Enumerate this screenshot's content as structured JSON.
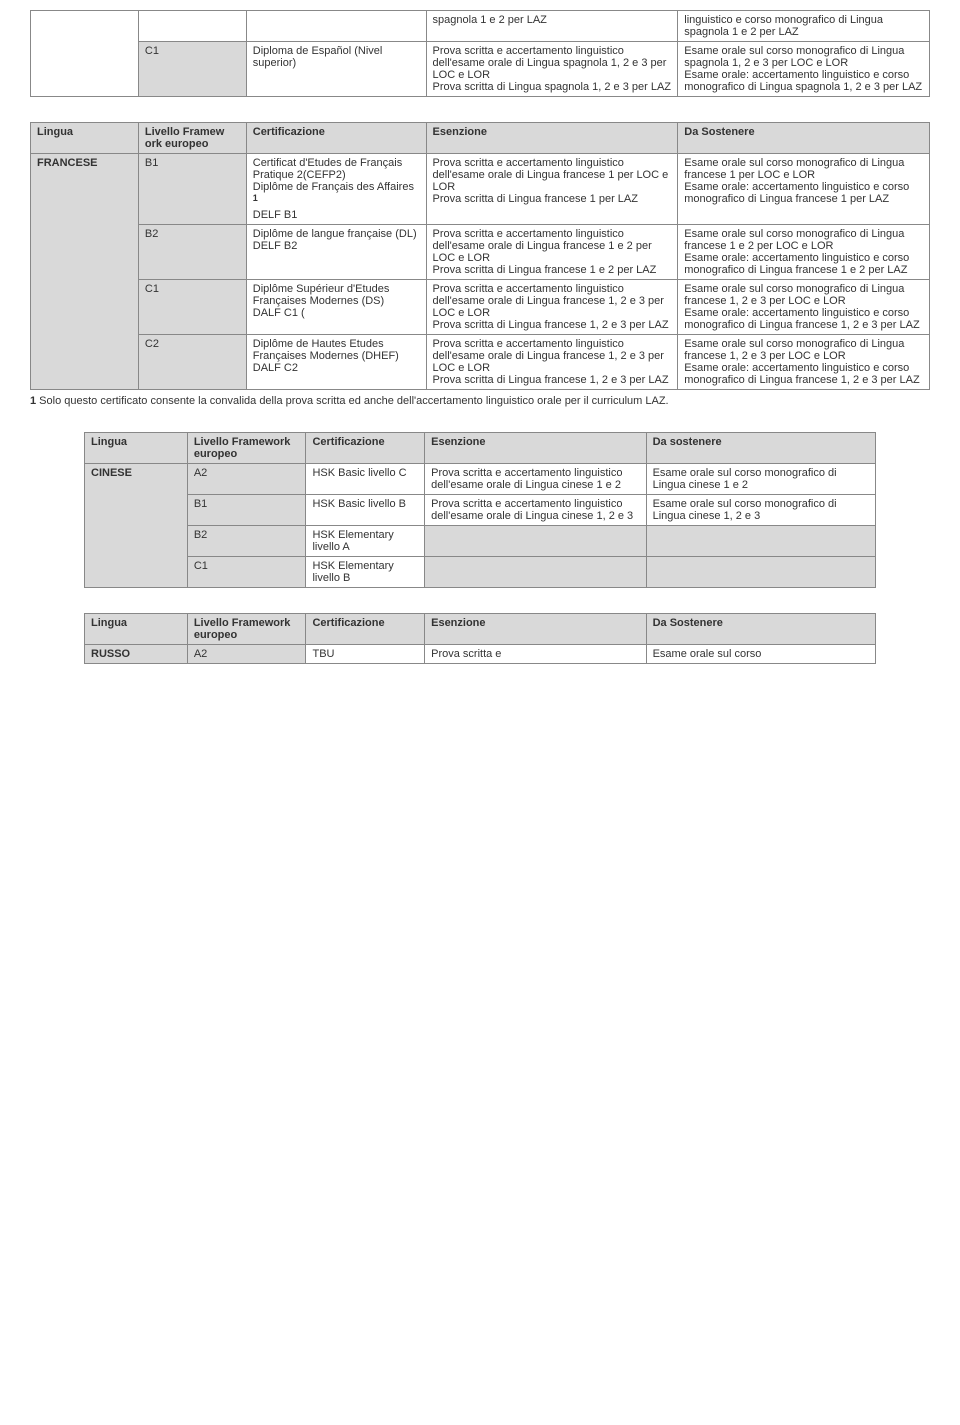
{
  "table1": {
    "r1c1": "",
    "r1c2": "",
    "r1c3": "spagnola 1 e 2 per LAZ",
    "r1c4": "linguistico e corso monografico di Lingua spagnola 1 e 2 per LAZ",
    "r2c1": "C1",
    "r2c2": "Diploma de Español (Nivel superior)",
    "r2c3": "Prova scritta e accertamento linguistico dell'esame orale di Lingua spagnola 1, 2 e 3 per LOC e LOR\nProva scritta di Lingua spagnola 1, 2 e 3 per LAZ",
    "r2c4": "Esame orale sul corso monografico di Lingua spagnola 1, 2 e 3 per LOC e LOR\nEsame orale: accertamento linguistico e corso monografico di Lingua spagnola 1, 2 e 3 per LAZ"
  },
  "table2": {
    "h1": "Lingua",
    "h2": "Livello Framew ork europeo",
    "h3": "Certificazione",
    "h4": "Esenzione",
    "h5": "Da Sostenere",
    "lang": "FRANCESE",
    "r1c1": "B1",
    "r1c2a": "Certificat d'Etudes de Français Pratique 2(CEFP2)",
    "r1c2b": "Diplôme de Français des Affaires ",
    "r1c2sup": "1",
    "r1c2c": "DELF B1",
    "r1c3": "Prova scritta e accertamento linguistico dell'esame orale di Lingua francese 1 per LOC e LOR\nProva scritta di Lingua francese 1 per LAZ",
    "r1c4": "Esame orale sul corso monografico di Lingua francese 1 per LOC e LOR\nEsame orale: accertamento linguistico e corso monografico di Lingua francese 1 per LAZ",
    "r2c1": "B2",
    "r2c2": "Diplôme de langue française (DL)\nDELF B2",
    "r2c3": "Prova scritta e accertamento linguistico dell'esame orale di Lingua francese 1 e 2 per LOC e LOR\nProva scritta di Lingua francese 1 e 2 per LAZ",
    "r2c4": "Esame orale sul corso monografico di Lingua francese 1 e 2 per LOC e LOR\nEsame orale: accertamento linguistico e corso monografico di Lingua francese 1 e 2 per LAZ",
    "r3c1": "C1",
    "r3c2": "Diplôme Supérieur d'Etudes Françaises Modernes (DS)\nDALF C1 (",
    "r3c3": "Prova scritta e accertamento linguistico dell'esame orale di Lingua francese 1, 2 e 3 per LOC e LOR\nProva scritta di Lingua francese 1, 2 e 3 per LAZ",
    "r3c4": "Esame orale sul corso monografico di Lingua francese 1, 2 e 3 per LOC e LOR\nEsame orale: accertamento linguistico e corso monografico di Lingua francese 1, 2 e 3 per LAZ",
    "r4c1": "C2",
    "r4c2": "Diplôme de Hautes Etudes Françaises Modernes (DHEF)\nDALF C2",
    "r4c3": "Prova scritta e accertamento linguistico dell'esame orale di Lingua francese 1, 2 e 3 per LOC e LOR\nProva scritta di Lingua francese 1, 2 e 3 per LAZ",
    "r4c4": "Esame orale sul corso monografico di Lingua francese 1, 2 e 3 per LOC e LOR\nEsame orale: accertamento linguistico e corso monografico di Lingua francese 1, 2 e 3 per LAZ"
  },
  "footnote": {
    "num": "1",
    "text": " Solo questo certificato consente la convalida della prova scritta ed anche dell'accertamento linguistico orale per il curriculum LAZ."
  },
  "table3": {
    "h1": "Lingua",
    "h2": "Livello Framework europeo",
    "h3": "Certificazione",
    "h4": "Esenzione",
    "h5": "Da sostenere",
    "lang": "CINESE",
    "r1c1": "A2",
    "r1c2": "HSK Basic livello C",
    "r1c3": "Prova scritta e accertamento linguistico dell'esame orale di Lingua cinese 1 e 2",
    "r1c4": "Esame orale sul corso monografico di Lingua cinese 1 e 2",
    "r2c1": "B1",
    "r2c2": "HSK Basic livello B",
    "r2c3": "Prova scritta e accertamento linguistico dell'esame orale di Lingua cinese 1, 2 e 3",
    "r2c4": "Esame orale sul corso monografico di Lingua cinese 1, 2 e 3",
    "r3c1": "B2",
    "r3c2": "HSK Elementary livello A",
    "r3c3": "",
    "r3c4": "",
    "r4c1": "C1",
    "r4c2": "HSK Elementary livello B",
    "r4c3": "",
    "r4c4": ""
  },
  "table4": {
    "h1": "Lingua",
    "h2": "Livello Framework europeo",
    "h3": "Certificazione",
    "h4": "Esenzione",
    "h5": "Da Sostenere",
    "lang": "RUSSO",
    "r1c1": "A2",
    "r1c2": "TBU",
    "r1c3": "Prova scritta e",
    "r1c4": "Esame orale sul corso"
  },
  "colwidths": {
    "c1": "12%",
    "c2": "12%",
    "c3": "20%",
    "c4": "28%",
    "c5": "28%"
  }
}
